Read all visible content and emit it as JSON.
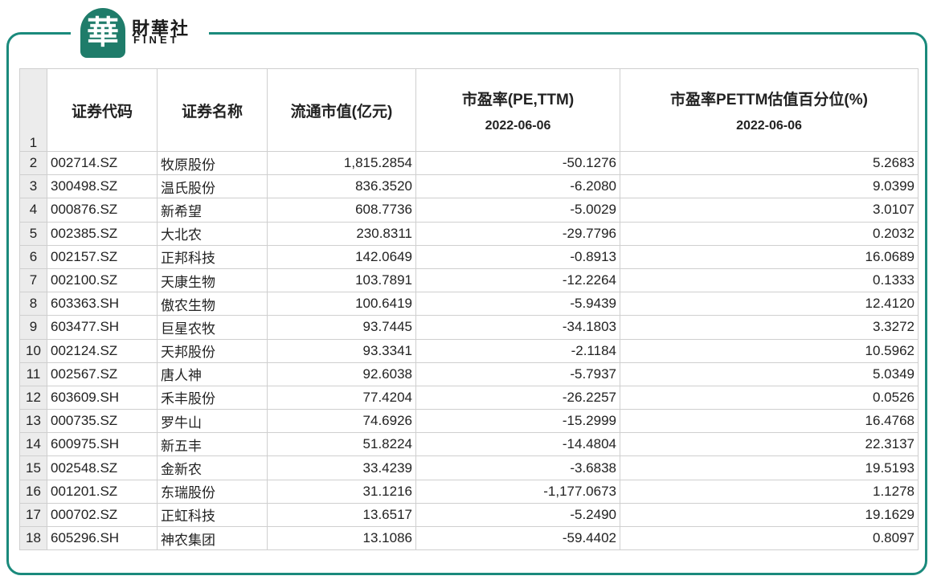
{
  "logo": {
    "glyph": "華",
    "cn": "財華社",
    "en": "FINET"
  },
  "header": {
    "row_number": "1",
    "code": "证券代码",
    "name": "证券名称",
    "float_cap": "流通市值(亿元)",
    "pe": "市盈率(PE,TTM)",
    "pe_date": "2022-06-06",
    "pct": "市盈率PETTM估值百分位(%)",
    "pct_date": "2022-06-06"
  },
  "rows": [
    {
      "n": "2",
      "code": "002714.SZ",
      "name": "牧原股份",
      "cap": "1,815.2854",
      "pe": "-50.1276",
      "pct": "5.2683"
    },
    {
      "n": "3",
      "code": "300498.SZ",
      "name": "温氏股份",
      "cap": "836.3520",
      "pe": "-6.2080",
      "pct": "9.0399"
    },
    {
      "n": "4",
      "code": "000876.SZ",
      "name": "新希望",
      "cap": "608.7736",
      "pe": "-5.0029",
      "pct": "3.0107"
    },
    {
      "n": "5",
      "code": "002385.SZ",
      "name": "大北农",
      "cap": "230.8311",
      "pe": "-29.7796",
      "pct": "0.2032"
    },
    {
      "n": "6",
      "code": "002157.SZ",
      "name": "正邦科技",
      "cap": "142.0649",
      "pe": "-0.8913",
      "pct": "16.0689"
    },
    {
      "n": "7",
      "code": "002100.SZ",
      "name": "天康生物",
      "cap": "103.7891",
      "pe": "-12.2264",
      "pct": "0.1333"
    },
    {
      "n": "8",
      "code": "603363.SH",
      "name": "傲农生物",
      "cap": "100.6419",
      "pe": "-5.9439",
      "pct": "12.4120"
    },
    {
      "n": "9",
      "code": "603477.SH",
      "name": "巨星农牧",
      "cap": "93.7445",
      "pe": "-34.1803",
      "pct": "3.3272"
    },
    {
      "n": "10",
      "code": "002124.SZ",
      "name": "天邦股份",
      "cap": "93.3341",
      "pe": "-2.1184",
      "pct": "10.5962"
    },
    {
      "n": "11",
      "code": "002567.SZ",
      "name": "唐人神",
      "cap": "92.6038",
      "pe": "-5.7937",
      "pct": "5.0349"
    },
    {
      "n": "12",
      "code": "603609.SH",
      "name": "禾丰股份",
      "cap": "77.4204",
      "pe": "-26.2257",
      "pct": "0.0526"
    },
    {
      "n": "13",
      "code": "000735.SZ",
      "name": "罗牛山",
      "cap": "74.6926",
      "pe": "-15.2999",
      "pct": "16.4768"
    },
    {
      "n": "14",
      "code": "600975.SH",
      "name": "新五丰",
      "cap": "51.8224",
      "pe": "-14.4804",
      "pct": "22.3137"
    },
    {
      "n": "15",
      "code": "002548.SZ",
      "name": "金新农",
      "cap": "33.4239",
      "pe": "-3.6838",
      "pct": "19.5193"
    },
    {
      "n": "16",
      "code": "001201.SZ",
      "name": "东瑞股份",
      "cap": "31.1216",
      "pe": "-1,177.0673",
      "pct": "1.1278"
    },
    {
      "n": "17",
      "code": "000702.SZ",
      "name": "正虹科技",
      "cap": "13.6517",
      "pe": "-5.2490",
      "pct": "19.1629"
    },
    {
      "n": "18",
      "code": "605296.SH",
      "name": "神农集团",
      "cap": "13.1086",
      "pe": "-59.4402",
      "pct": "0.8097"
    }
  ]
}
